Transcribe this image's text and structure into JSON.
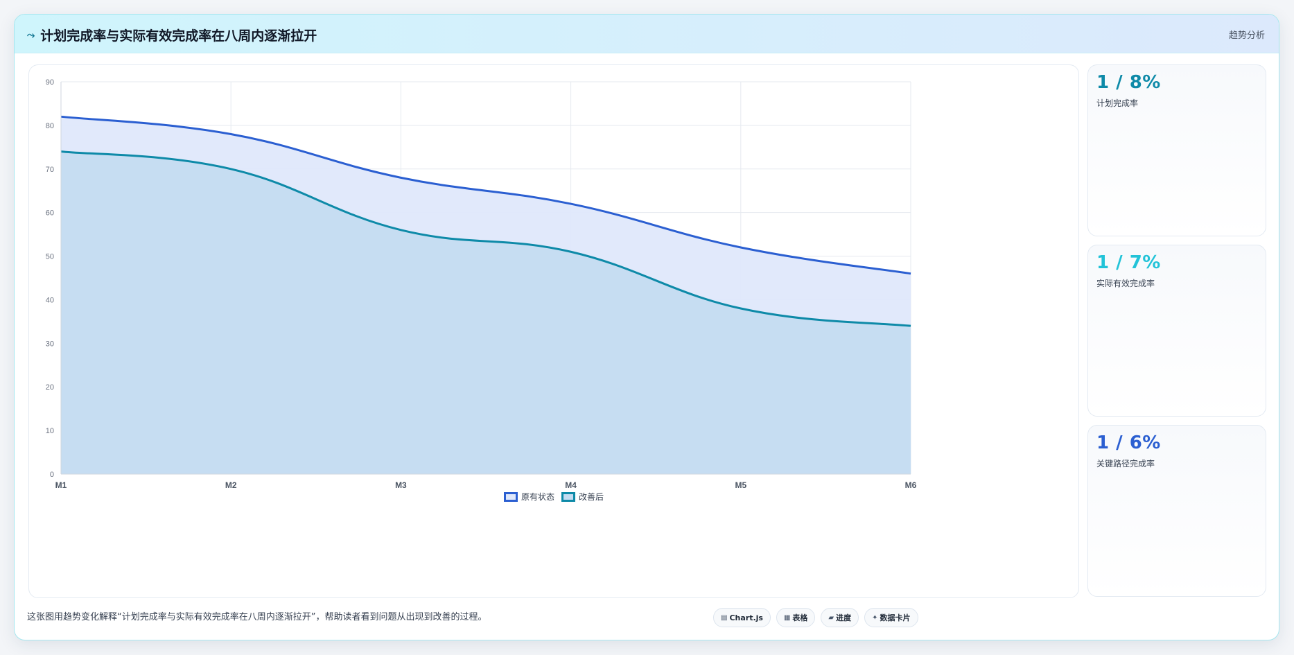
{
  "header": {
    "icon": "trend-icon",
    "title": "计划完成率与实际有效完成率在八周内逐渐拉开",
    "tag": "趋势分析"
  },
  "chart_data": {
    "type": "area",
    "categories": [
      "M1",
      "M2",
      "M3",
      "M4",
      "M5",
      "M6"
    ],
    "series": [
      {
        "name": "原有状态",
        "values": [
          82,
          78,
          68,
          62,
          52,
          46
        ],
        "color": "#2b5fd1",
        "fill": "#dfe8fb"
      },
      {
        "name": "改善后",
        "values": [
          74,
          70,
          56,
          51,
          38,
          34
        ],
        "color": "#0e8aa8",
        "fill": "#c4dcf1"
      }
    ],
    "ylim": [
      0,
      90
    ],
    "yticks": [
      0,
      10,
      20,
      30,
      40,
      50,
      60,
      70,
      80,
      90
    ],
    "grid": true,
    "legend": "bottom-center",
    "title": "",
    "xlabel": "",
    "ylabel": ""
  },
  "stats": [
    {
      "value": "1 / 8%",
      "label": "计划完成率",
      "color": "#0e8aa8"
    },
    {
      "value": "1 / 7%",
      "label": "实际有效完成率",
      "color": "#22c3d8"
    },
    {
      "value": "1 / 6%",
      "label": "关键路径完成率",
      "color": "#2b5fd1"
    }
  ],
  "footer": {
    "caption": "这张图用趋势变化解释“计划完成率与实际有效完成率在八周内逐渐拉开”，帮助读者看到问题从出现到改善的过程。",
    "chips": [
      {
        "icon": "chart-icon",
        "glyph": "▤",
        "label": "Chart.js"
      },
      {
        "icon": "table-icon",
        "glyph": "▦",
        "label": "表格"
      },
      {
        "icon": "progress-icon",
        "glyph": "▰",
        "label": "进度"
      },
      {
        "icon": "card-icon",
        "glyph": "✦",
        "label": "数据卡片"
      }
    ]
  }
}
